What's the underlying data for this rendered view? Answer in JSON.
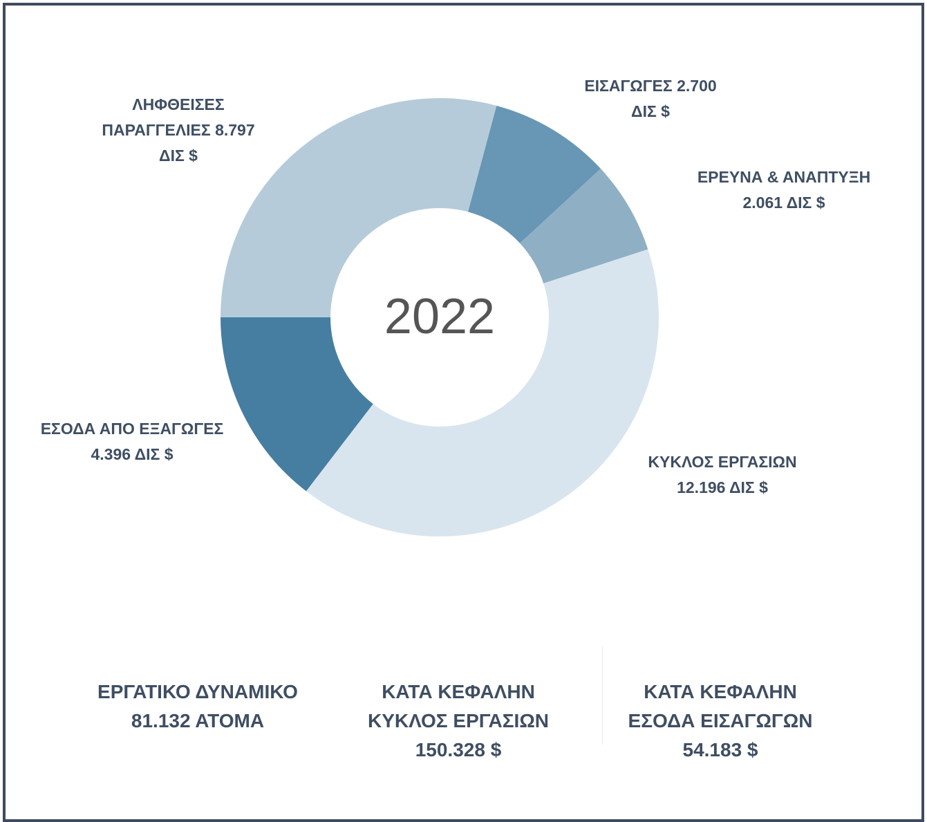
{
  "chart_data": {
    "type": "pie",
    "categories": [
      "ΛΗΦΘΕΙΣΕΣ ΠΑΡΑΓΓΕΛΙΕΣ",
      "ΕΙΣΑΓΩΓΕΣ",
      "ΕΡΕΥΝΑ & ΑΝΑΠΤΥΞΗ",
      "ΚΥΚΛΟΣ ΕΡΓΑΣΙΩΝ",
      "ΕΣΟΔΑ ΑΠΟ ΕΞΑΓΩΓΕΣ"
    ],
    "values": [
      8.797,
      2.7,
      2.061,
      12.196,
      4.396
    ],
    "value_labels": [
      "8.797 ΔΙΣ $",
      "2.700 ΔΙΣ $",
      "2.061 ΔΙΣ $",
      "12.196 ΔΙΣ $",
      "4.396 ΔΙΣ $"
    ],
    "colors": [
      "#b5cbd9",
      "#6896b5",
      "#8fafc4",
      "#d9e5ee",
      "#467ea2"
    ],
    "donut": true,
    "center_text": "2022"
  },
  "stats": [
    {
      "label": "ΕΡΓΑΤΙΚΟ ΔΥΝΑΜΙΚΟ",
      "value": "81.132 ΑΤΟΜΑ"
    },
    {
      "label": "ΚΑΤΑ ΚΕΦΑΛΗΝ ΚΥΚΛΟΣ ΕΡΓΑΣΙΩΝ",
      "value": "150.328 $"
    },
    {
      "label": "ΚΑΤΑ ΚΕΦΑΛΗΝ ΕΣΟΔΑ ΕΙΣΑΓΩΓΩΝ",
      "value": "54.183 $"
    }
  ]
}
